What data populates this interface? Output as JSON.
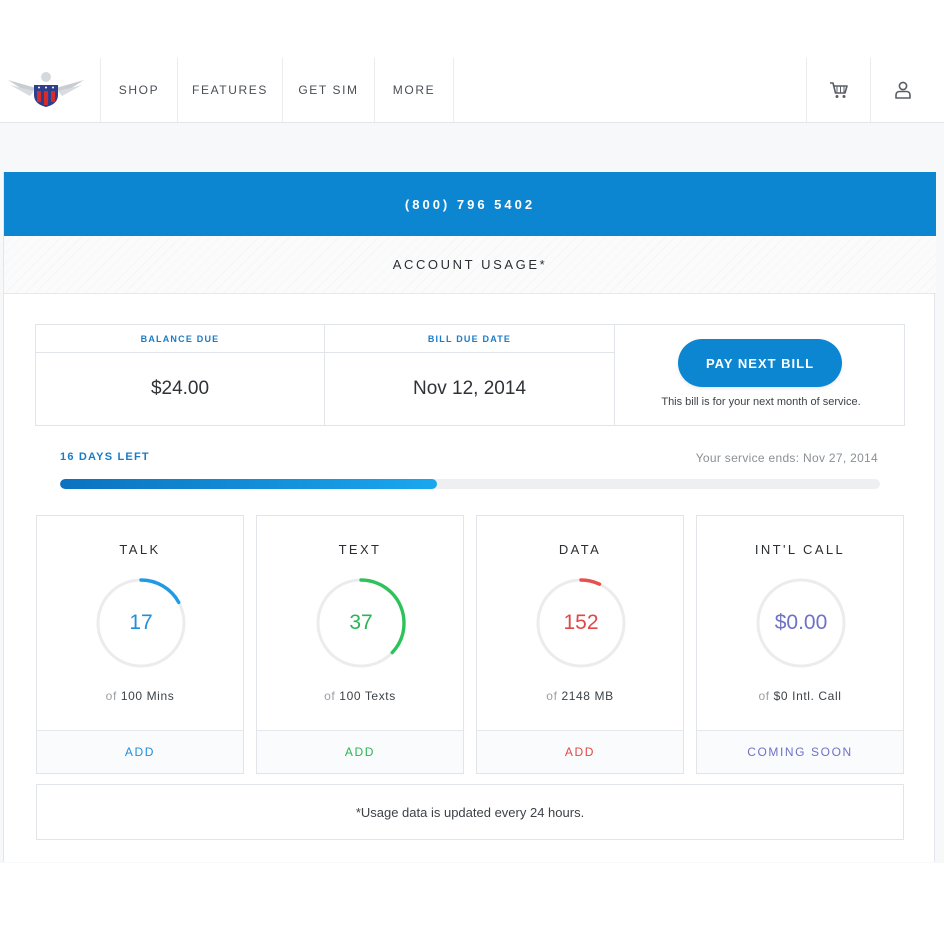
{
  "nav": {
    "items": [
      "SHOP",
      "FEATURES",
      "GET SIM",
      "MORE"
    ]
  },
  "account": {
    "phone": "(800) 796 5402",
    "usage_title": "ACCOUNT USAGE*"
  },
  "billing": {
    "balance_label": "BALANCE DUE",
    "balance_value": "$24.00",
    "due_label": "BILL DUE DATE",
    "due_value": "Nov 12, 2014",
    "pay_button": "PAY NEXT BILL",
    "pay_note": "This bill is for your next month of service."
  },
  "period": {
    "days_left": "16 DAYS LEFT",
    "service_ends": "Your service ends: Nov 27, 2014",
    "progress_fraction": 0.46
  },
  "cards": [
    {
      "title": "TALK",
      "value": "17",
      "of": "of",
      "limit": "100 Mins",
      "action": "ADD",
      "fraction": 0.17,
      "color": "#1f9be6",
      "text_color": "#1f8fd9"
    },
    {
      "title": "TEXT",
      "value": "37",
      "of": "of",
      "limit": "100 Texts",
      "action": "ADD",
      "fraction": 0.37,
      "color": "#2ec25a",
      "text_color": "#29b455"
    },
    {
      "title": "DATA",
      "value": "152",
      "of": "of",
      "limit": "2148 MB",
      "action": "ADD",
      "fraction": 0.0708,
      "color": "#e8504f",
      "text_color": "#e04848"
    },
    {
      "title": "INT'L CALL",
      "value": "$0.00",
      "of": "of",
      "limit": "$0 Intl. Call",
      "action": "COMING SOON",
      "fraction": 0,
      "color": "#6e72c6",
      "text_color": "#6e72c6"
    }
  ],
  "footnote": "*Usage data is updated every 24 hours."
}
